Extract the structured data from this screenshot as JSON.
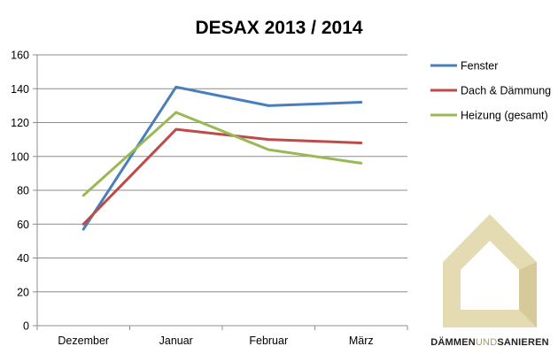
{
  "chart_data": {
    "type": "line",
    "title": "DESAX 2013 / 2014",
    "xlabel": "",
    "ylabel": "",
    "categories": [
      "Dezember",
      "Januar",
      "Februar",
      "März"
    ],
    "ylim": [
      0,
      160
    ],
    "yticks": [
      0,
      20,
      40,
      60,
      80,
      100,
      120,
      140,
      160
    ],
    "grid": true,
    "legend_position": "right",
    "series": [
      {
        "name": "Fenster",
        "values": [
          57,
          141,
          130,
          132
        ],
        "color": "#4a7ebb"
      },
      {
        "name": "Dach & Dämmung",
        "values": [
          60,
          116,
          110,
          108
        ],
        "color": "#be4b48"
      },
      {
        "name": "Heizung (gesamt)",
        "values": [
          77,
          126,
          104,
          96
        ],
        "color": "#98b954"
      }
    ]
  },
  "logo": {
    "text_part1": "DÄMMEN",
    "text_part2": "UND",
    "text_part3": "SANIEREN",
    "color_main": "#e5dbb2",
    "color_dark": "#a89a6a"
  }
}
